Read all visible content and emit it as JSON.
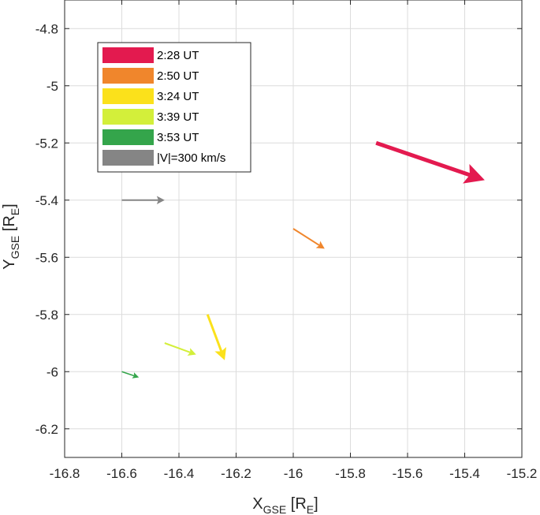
{
  "chart_data": {
    "type": "vector",
    "xlabel": {
      "main": "X",
      "sub": "GSE",
      "unit_open": " [R",
      "unit_sub": "E",
      "unit_close": "]"
    },
    "ylabel": {
      "main": "Y",
      "sub": "GSE",
      "unit_open": " [R",
      "unit_sub": "E",
      "unit_close": "]"
    },
    "xlim": [
      -16.8,
      -15.2
    ],
    "ylim": [
      -6.3,
      -4.7
    ],
    "y_reversed": true,
    "grid": true,
    "xticks": [
      -16.8,
      -16.6,
      -16.4,
      -16.2,
      -16,
      -15.8,
      -15.6,
      -15.4,
      -15.2
    ],
    "xtick_labels": [
      "-16.8",
      "-16.6",
      "-16.4",
      "-16.2",
      "-16",
      "-15.8",
      "-15.6",
      "-15.4",
      "-15.2"
    ],
    "yticks": [
      -4.8,
      -5,
      -5.2,
      -5.4,
      -5.6,
      -5.8,
      -6,
      -6.2
    ],
    "ytick_labels": [
      "-4.8",
      "-5",
      "-5.2",
      "-5.4",
      "-5.6",
      "-5.8",
      "-6",
      "-6.2"
    ],
    "legend_position": "top-left",
    "series": [
      {
        "name": "2:28 UT",
        "color": "#e31a4f",
        "x0": -15.71,
        "y0": -5.2,
        "x1": -15.33,
        "y1": -5.33,
        "width": 5
      },
      {
        "name": "2:50 UT",
        "color": "#f0862c",
        "x0": -16.0,
        "y0": -5.5,
        "x1": -15.89,
        "y1": -5.57,
        "width": 2
      },
      {
        "name": "3:24 UT",
        "color": "#fbe11b",
        "x0": -16.3,
        "y0": -5.8,
        "x1": -16.24,
        "y1": -5.96,
        "width": 3
      },
      {
        "name": "3:39 UT",
        "color": "#d3ef3a",
        "x0": -16.45,
        "y0": -5.9,
        "x1": -16.34,
        "y1": -5.94,
        "width": 2
      },
      {
        "name": "3:53 UT",
        "color": "#34a54b",
        "x0": -16.6,
        "y0": -6.0,
        "x1": -16.54,
        "y1": -6.02,
        "width": 1.5
      },
      {
        "name": "|V|=300 km/s",
        "color": "#858585",
        "x0": -16.6,
        "y0": -5.4,
        "x1": -16.45,
        "y1": -5.4,
        "width": 2
      }
    ]
  }
}
